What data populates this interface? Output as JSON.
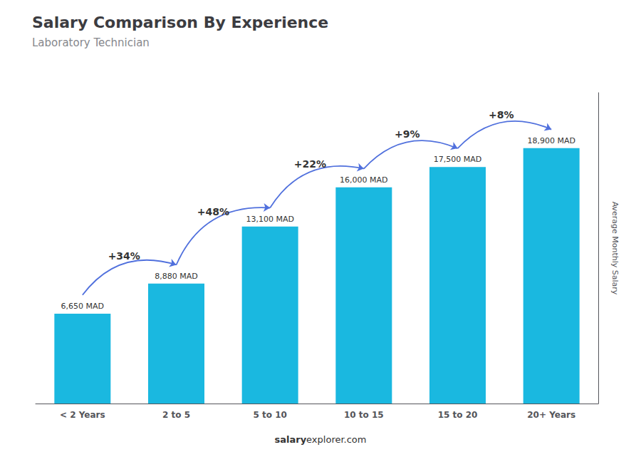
{
  "chart_data": {
    "type": "bar",
    "title": "Salary Comparison By Experience",
    "subtitle": "Laboratory Technician",
    "categories": [
      "< 2 Years",
      "2 to 5",
      "5 to 10",
      "10 to 15",
      "15 to 20",
      "20+ Years"
    ],
    "values": [
      6650,
      8880,
      13100,
      16000,
      17500,
      18900
    ],
    "value_labels": [
      "6,650 MAD",
      "8,880 MAD",
      "13,100 MAD",
      "16,000 MAD",
      "17,500 MAD",
      "18,900 MAD"
    ],
    "data_labels": true,
    "color": "#1ab8e0",
    "ylabel": "Average Monthly Salary",
    "ylim": [
      0,
      23000
    ],
    "tick_labels": "x",
    "grid": false,
    "annotations": [
      "+34%",
      "+48%",
      "+22%",
      "+9%",
      "+8%"
    ],
    "footer": [
      "salary",
      "explorer.com"
    ]
  }
}
